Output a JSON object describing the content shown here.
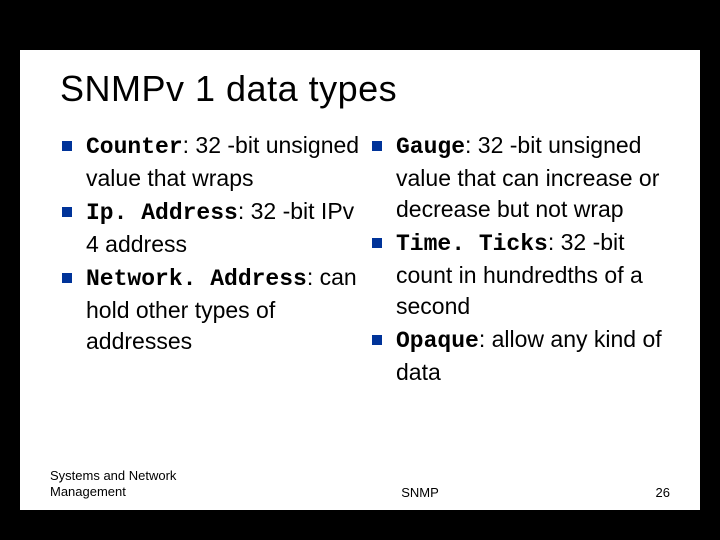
{
  "slide": {
    "title": "SNMPv 1 data types",
    "background_color": "#ffffff",
    "page_background": "#000000",
    "bullet_color": "#003399",
    "title_fontsize": 36,
    "body_fontsize": 23,
    "footer_fontsize": 13,
    "left_items": [
      {
        "term": "Counter",
        "rest": ": 32 -bit unsigned value that wraps"
      },
      {
        "term": "Ip. Address",
        "rest": ": 32 -bit IPv 4 address"
      },
      {
        "term": "Network. Address",
        "rest": ": can hold other types of addresses"
      }
    ],
    "right_items": [
      {
        "term": "Gauge",
        "rest": ": 32 -bit unsigned value that can increase or decrease but not wrap"
      },
      {
        "term": "Time. Ticks",
        "rest": ": 32 -bit count in hundredths of a second"
      },
      {
        "term": "Opaque",
        "rest": ": allow any kind of data"
      }
    ],
    "footer": {
      "left": "Systems and Network Management",
      "center": "SNMP",
      "page_number": "26"
    }
  }
}
